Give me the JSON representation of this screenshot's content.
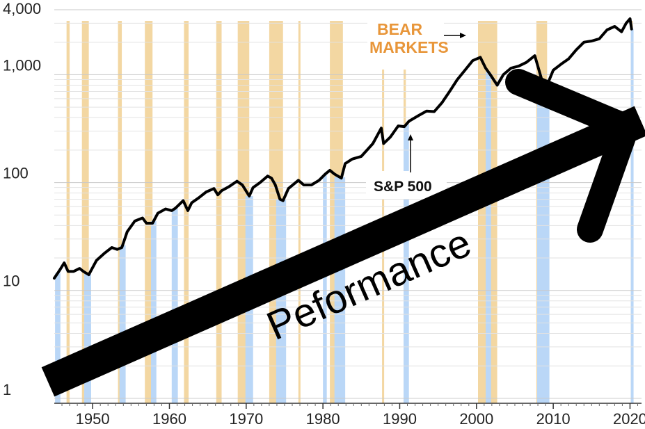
{
  "chart_data": {
    "type": "line",
    "title": "",
    "xlabel": "",
    "ylabel": "",
    "scale_y": "log",
    "xlim": [
      1945,
      2021.5
    ],
    "ylim": [
      0.9,
      4000
    ],
    "x_ticks": [
      1950,
      1960,
      1970,
      1980,
      1990,
      2000,
      2010,
      2020
    ],
    "y_ticks": [
      {
        "value": 1,
        "label": "1"
      },
      {
        "value": 10,
        "label": "10"
      },
      {
        "value": 100,
        "label": "100"
      },
      {
        "value": 1000,
        "label": "1,000"
      },
      {
        "value": 4000,
        "label": "4,000"
      }
    ],
    "grid": "horizontal log minor gridlines",
    "series": [
      {
        "color": "#000000",
        "x": [
          1945.0,
          1945.6,
          1946.3,
          1946.8,
          1947.5,
          1948.3,
          1948.8,
          1949.5,
          1950.5,
          1951.5,
          1952.5,
          1953.2,
          1953.8,
          1954.5,
          1955.5,
          1956.5,
          1957.0,
          1957.8,
          1958.5,
          1959.5,
          1960.3,
          1960.8,
          1961.8,
          1962.4,
          1962.9,
          1963.8,
          1964.8,
          1965.8,
          1966.3,
          1966.8,
          1967.8,
          1968.8,
          1969.5,
          1970.4,
          1970.9,
          1971.8,
          1972.8,
          1973.3,
          1973.8,
          1974.4,
          1974.8,
          1975.5,
          1976.8,
          1977.5,
          1978.5,
          1979.5,
          1980.3,
          1980.9,
          1981.5,
          1982.4,
          1982.9,
          1983.8,
          1985.0,
          1986.5,
          1987.6,
          1987.9,
          1988.8,
          1989.8,
          1990.6,
          1991.2,
          1992.5,
          1993.5,
          1994.5,
          1995.5,
          1996.5,
          1997.5,
          1998.5,
          1999.5,
          2000.5,
          2001.2,
          2001.8,
          2002.7,
          2003.5,
          2004.5,
          2005.5,
          2006.5,
          2007.6,
          2008.5,
          2009.2,
          2010.0,
          2011.0,
          2012.0,
          2013.0,
          2014.0,
          2015.0,
          2016.0,
          2017.0,
          2018.0,
          2018.9,
          2019.5,
          2020.0,
          2020.2
        ],
        "y": [
          13,
          15,
          18,
          15,
          15,
          16,
          15,
          14,
          19,
          22,
          25,
          24,
          25,
          35,
          44,
          47,
          42,
          42,
          52,
          57,
          55,
          58,
          68,
          55,
          65,
          72,
          82,
          88,
          77,
          84,
          92,
          103,
          95,
          75,
          90,
          100,
          115,
          110,
          95,
          70,
          68,
          88,
          105,
          95,
          95,
          105,
          120,
          130,
          120,
          110,
          150,
          165,
          175,
          230,
          320,
          230,
          265,
          335,
          330,
          370,
          420,
          460,
          455,
          550,
          700,
          900,
          1100,
          1350,
          1450,
          1150,
          1000,
          800,
          1000,
          1150,
          1200,
          1300,
          1500,
          900,
          800,
          1100,
          1250,
          1400,
          1700,
          2000,
          2050,
          2150,
          2600,
          2800,
          2500,
          3000,
          3300,
          2650
        ]
      }
    ],
    "bear_markets": [
      [
        1946.6,
        1947.0
      ],
      [
        1948.6,
        1949.5
      ],
      [
        1953.3,
        1953.8
      ],
      [
        1956.8,
        1957.8
      ],
      [
        1961.9,
        1962.5
      ],
      [
        1966.1,
        1966.8
      ],
      [
        1968.9,
        1970.4
      ],
      [
        1973.0,
        1974.8
      ],
      [
        1976.8,
        1976.9
      ],
      [
        1980.9,
        1982.6
      ],
      [
        1987.7,
        1987.9
      ],
      [
        1990.5,
        1990.8
      ],
      [
        2000.2,
        2002.7
      ],
      [
        2007.8,
        2009.2
      ],
      [
        2020.1,
        2020.2
      ]
    ],
    "recessions": [
      [
        1945.1,
        1945.8
      ],
      [
        1948.9,
        1949.8
      ],
      [
        1953.5,
        1954.3
      ],
      [
        1957.6,
        1958.3
      ],
      [
        1960.3,
        1961.1
      ],
      [
        1969.9,
        1970.9
      ],
      [
        1973.9,
        1975.2
      ],
      [
        1980.0,
        1980.5
      ],
      [
        1981.5,
        1982.9
      ],
      [
        1990.5,
        1991.2
      ],
      [
        2001.2,
        2001.9
      ],
      [
        2007.9,
        2009.5
      ],
      [
        2020.1,
        2020.3
      ]
    ],
    "annotations": {
      "bear_label_line1": "BEAR",
      "bear_label_line2": "MARKETS",
      "series_label": "S&P 500",
      "overlay_text": "Peformance"
    }
  }
}
